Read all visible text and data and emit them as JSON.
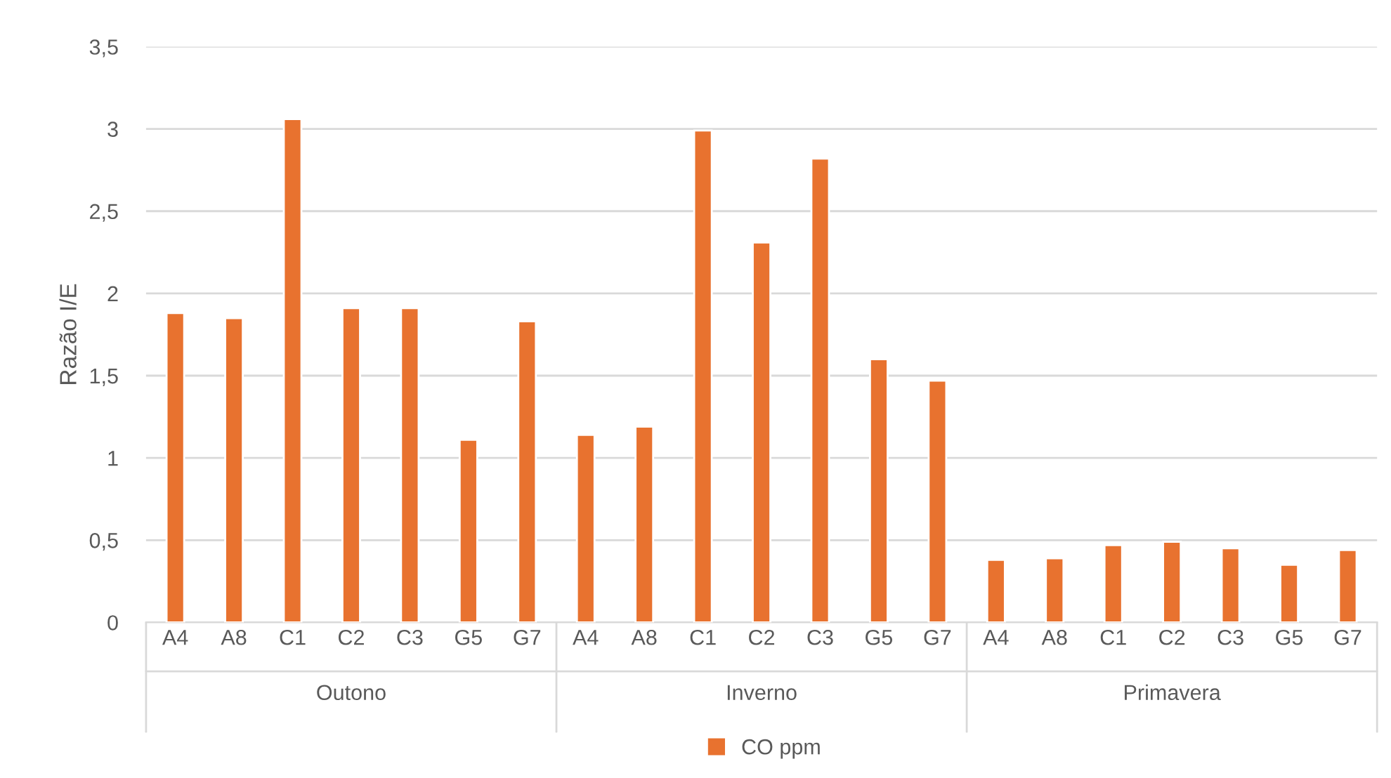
{
  "chart_data": {
    "type": "bar",
    "categories": [
      "A4",
      "A8",
      "C1",
      "C2",
      "C3",
      "G5",
      "G7",
      "A4",
      "A8",
      "C1",
      "C2",
      "C3",
      "G5",
      "G7",
      "A4",
      "A8",
      "C1",
      "C2",
      "C3",
      "G5",
      "G7"
    ],
    "series": [
      {
        "name": "CO ppm",
        "color": "#e8722f",
        "values": [
          1.88,
          1.85,
          3.06,
          1.91,
          1.91,
          1.11,
          1.83,
          1.14,
          1.19,
          2.99,
          2.31,
          2.82,
          1.6,
          1.47,
          0.38,
          0.39,
          0.47,
          0.49,
          0.45,
          0.35,
          0.44
        ]
      }
    ],
    "annotations": [
      "Outono",
      "Inverno",
      "Primavera"
    ],
    "ylabel": "Razão I/E",
    "ylim": [
      0,
      3.5
    ],
    "yticks": [
      0,
      {
        "value": 0.5,
        "label": "0,5"
      },
      1,
      {
        "value": 1.5,
        "label": "1,5"
      },
      2,
      {
        "value": 2.5,
        "label": "2,5"
      },
      3,
      {
        "value": 3.5,
        "label": "3,5"
      }
    ],
    "grid": "y",
    "legend": "bottom"
  }
}
